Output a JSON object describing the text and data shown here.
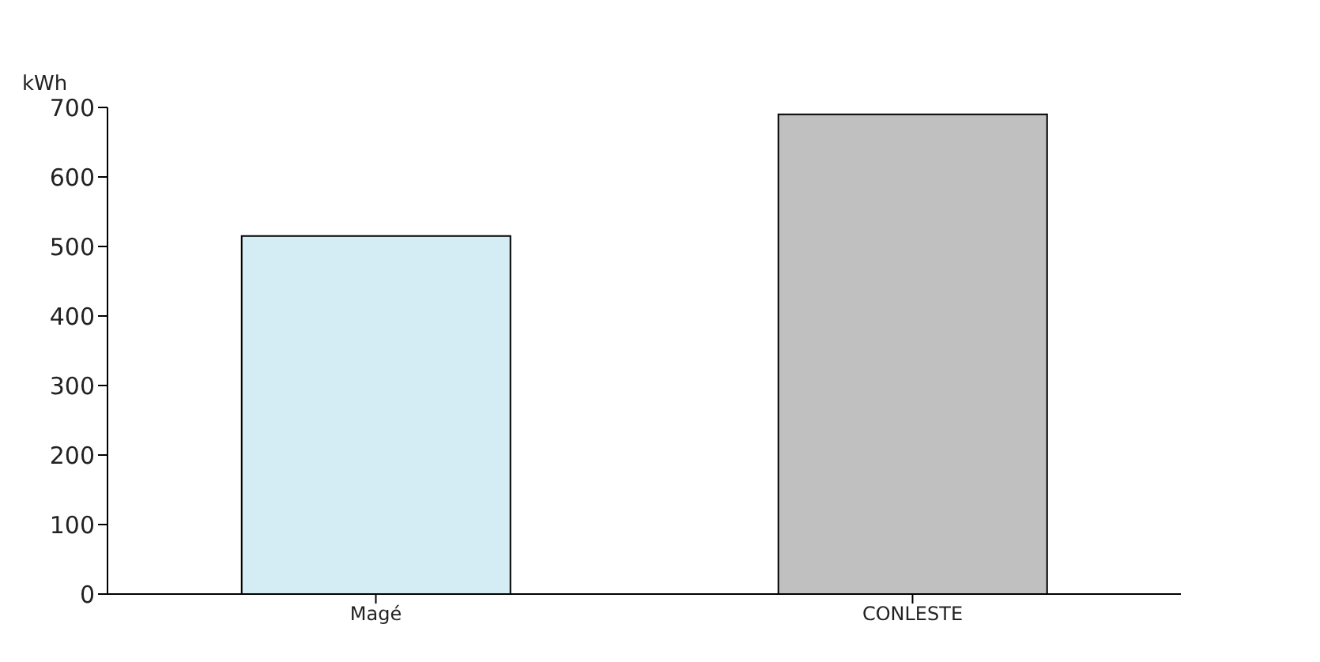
{
  "chart_data": {
    "type": "bar",
    "ylabel": "kWh",
    "categories": [
      "Magé",
      "CONLESTE"
    ],
    "values": [
      515,
      690
    ],
    "colors": [
      "#d4ecf4",
      "#c0c0c0"
    ],
    "ylim": [
      0,
      700
    ],
    "yticks": [
      0,
      100,
      200,
      300,
      400,
      500,
      600,
      700
    ],
    "grid": false
  }
}
